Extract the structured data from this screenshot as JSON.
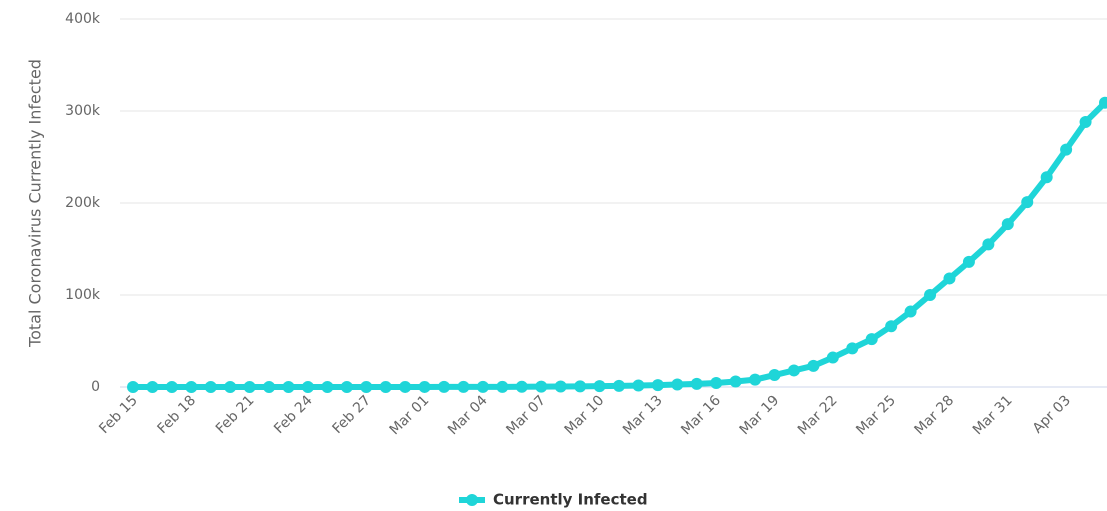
{
  "chart_data": {
    "type": "line",
    "y_axis_label": "Total Coronavirus Currently Infected",
    "categories": [
      "Feb 15",
      null,
      null,
      "Feb 18",
      null,
      null,
      "Feb 21",
      null,
      null,
      "Feb 24",
      null,
      null,
      "Feb 27",
      null,
      null,
      "Mar 01",
      null,
      null,
      "Mar 04",
      null,
      null,
      "Mar 07",
      null,
      null,
      "Mar 10",
      null,
      null,
      "Mar 13",
      null,
      null,
      "Mar 16",
      null,
      null,
      "Mar 19",
      null,
      null,
      "Mar 22",
      null,
      null,
      "Mar 25",
      null,
      null,
      "Mar 28",
      null,
      null,
      "Mar 31",
      null,
      null,
      "Apr 03",
      null,
      null
    ],
    "series": [
      {
        "name": "Currently Infected",
        "color": "#1fd5d8",
        "values": [
          12,
          12,
          12,
          12,
          12,
          12,
          12,
          12,
          12,
          12,
          12,
          14,
          45,
          50,
          60,
          65,
          80,
          100,
          120,
          160,
          230,
          400,
          500,
          650,
          950,
          1200,
          1600,
          2000,
          2700,
          3400,
          4300,
          6000,
          8000,
          13000,
          18000,
          23000,
          32000,
          42000,
          52000,
          66000,
          82000,
          100000,
          118000,
          136000,
          155000,
          177000,
          201000,
          228000,
          258000,
          288000,
          309000
        ]
      }
    ],
    "ylim": [
      0,
      400000
    ],
    "yticks": [
      0,
      {
        "value": 100000,
        "label": "100k"
      },
      {
        "value": 200000,
        "label": "200k"
      },
      {
        "value": 300000,
        "label": "300k"
      },
      {
        "value": 400000,
        "label": "400k"
      }
    ],
    "grid": true,
    "legend": "bottom"
  }
}
